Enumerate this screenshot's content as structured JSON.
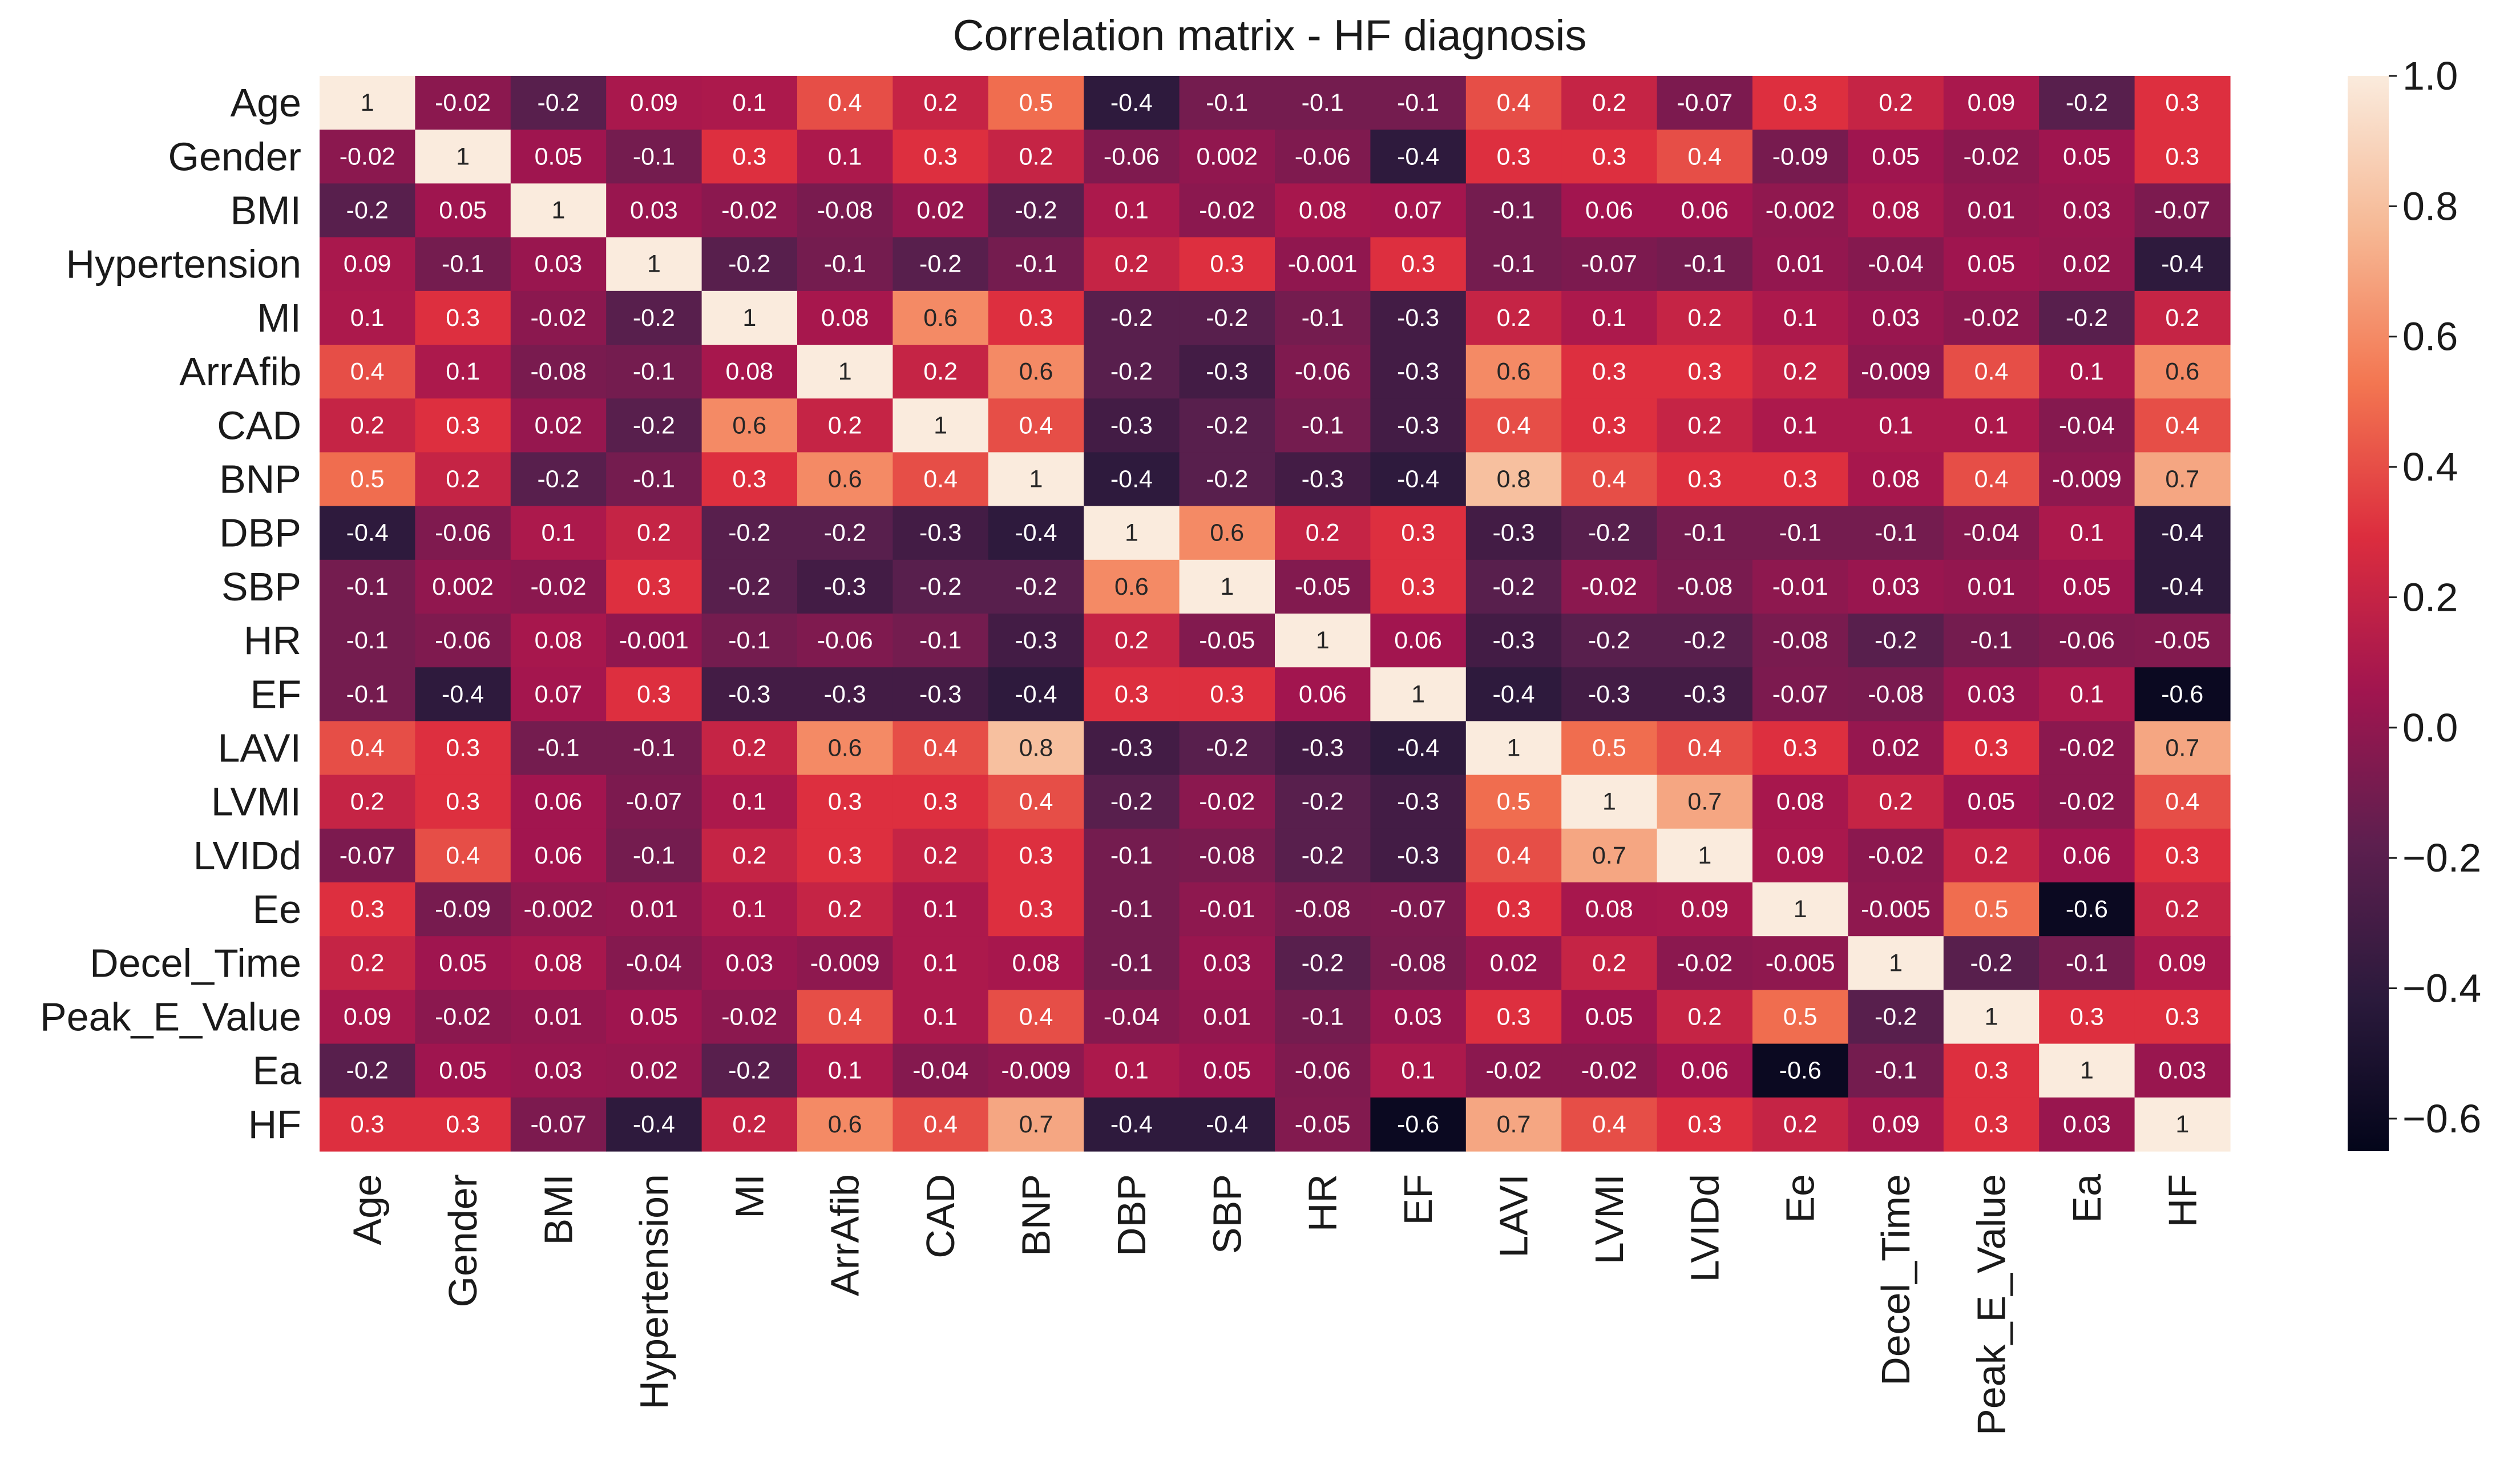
{
  "chart_data": {
    "type": "heatmap",
    "title": "Correlation matrix - HF diagnosis",
    "xlabel": "",
    "ylabel": "",
    "variables": [
      "Age",
      "Gender",
      "BMI",
      "Hypertension",
      "MI",
      "ArrAfib",
      "CAD",
      "BNP",
      "DBP",
      "SBP",
      "HR",
      "EF",
      "LAVI",
      "LVMI",
      "LVIDd",
      "Ee",
      "Decel_Time",
      "Peak_E_Value",
      "Ea",
      "HF"
    ],
    "cell_labels": [
      [
        "1",
        "-0.02",
        "-0.2",
        "0.09",
        "0.1",
        "0.4",
        "0.2",
        "0.5",
        "-0.4",
        "-0.1",
        "-0.1",
        "-0.1",
        "0.4",
        "0.2",
        "-0.07",
        "0.3",
        "0.2",
        "0.09",
        "-0.2",
        "0.3"
      ],
      [
        "-0.02",
        "1",
        "0.05",
        "-0.1",
        "0.3",
        "0.1",
        "0.3",
        "0.2",
        "-0.06",
        "0.002",
        "-0.06",
        "-0.4",
        "0.3",
        "0.3",
        "0.4",
        "-0.09",
        "0.05",
        "-0.02",
        "0.05",
        "0.3"
      ],
      [
        "-0.2",
        "0.05",
        "1",
        "0.03",
        "-0.02",
        "-0.08",
        "0.02",
        "-0.2",
        "0.1",
        "-0.02",
        "0.08",
        "0.07",
        "-0.1",
        "0.06",
        "0.06",
        "-0.002",
        "0.08",
        "0.01",
        "0.03",
        "-0.07"
      ],
      [
        "0.09",
        "-0.1",
        "0.03",
        "1",
        "-0.2",
        "-0.1",
        "-0.2",
        "-0.1",
        "0.2",
        "0.3",
        "-0.001",
        "0.3",
        "-0.1",
        "-0.07",
        "-0.1",
        "0.01",
        "-0.04",
        "0.05",
        "0.02",
        "-0.4"
      ],
      [
        "0.1",
        "0.3",
        "-0.02",
        "-0.2",
        "1",
        "0.08",
        "0.6",
        "0.3",
        "-0.2",
        "-0.2",
        "-0.1",
        "-0.3",
        "0.2",
        "0.1",
        "0.2",
        "0.1",
        "0.03",
        "-0.02",
        "-0.2",
        "0.2"
      ],
      [
        "0.4",
        "0.1",
        "-0.08",
        "-0.1",
        "0.08",
        "1",
        "0.2",
        "0.6",
        "-0.2",
        "-0.3",
        "-0.06",
        "-0.3",
        "0.6",
        "0.3",
        "0.3",
        "0.2",
        "-0.009",
        "0.4",
        "0.1",
        "0.6"
      ],
      [
        "0.2",
        "0.3",
        "0.02",
        "-0.2",
        "0.6",
        "0.2",
        "1",
        "0.4",
        "-0.3",
        "-0.2",
        "-0.1",
        "-0.3",
        "0.4",
        "0.3",
        "0.2",
        "0.1",
        "0.1",
        "0.1",
        "-0.04",
        "0.4"
      ],
      [
        "0.5",
        "0.2",
        "-0.2",
        "-0.1",
        "0.3",
        "0.6",
        "0.4",
        "1",
        "-0.4",
        "-0.2",
        "-0.3",
        "-0.4",
        "0.8",
        "0.4",
        "0.3",
        "0.3",
        "0.08",
        "0.4",
        "-0.009",
        "0.7"
      ],
      [
        "-0.4",
        "-0.06",
        "0.1",
        "0.2",
        "-0.2",
        "-0.2",
        "-0.3",
        "-0.4",
        "1",
        "0.6",
        "0.2",
        "0.3",
        "-0.3",
        "-0.2",
        "-0.1",
        "-0.1",
        "-0.1",
        "-0.04",
        "0.1",
        "-0.4"
      ],
      [
        "-0.1",
        "0.002",
        "-0.02",
        "0.3",
        "-0.2",
        "-0.3",
        "-0.2",
        "-0.2",
        "0.6",
        "1",
        "-0.05",
        "0.3",
        "-0.2",
        "-0.02",
        "-0.08",
        "-0.01",
        "0.03",
        "0.01",
        "0.05",
        "-0.4"
      ],
      [
        "-0.1",
        "-0.06",
        "0.08",
        "-0.001",
        "-0.1",
        "-0.06",
        "-0.1",
        "-0.3",
        "0.2",
        "-0.05",
        "1",
        "0.06",
        "-0.3",
        "-0.2",
        "-0.2",
        "-0.08",
        "-0.2",
        "-0.1",
        "-0.06",
        "-0.05"
      ],
      [
        "-0.1",
        "-0.4",
        "0.07",
        "0.3",
        "-0.3",
        "-0.3",
        "-0.3",
        "-0.4",
        "0.3",
        "0.3",
        "0.06",
        "1",
        "-0.4",
        "-0.3",
        "-0.3",
        "-0.07",
        "-0.08",
        "0.03",
        "0.1",
        "-0.6"
      ],
      [
        "0.4",
        "0.3",
        "-0.1",
        "-0.1",
        "0.2",
        "0.6",
        "0.4",
        "0.8",
        "-0.3",
        "-0.2",
        "-0.3",
        "-0.4",
        "1",
        "0.5",
        "0.4",
        "0.3",
        "0.02",
        "0.3",
        "-0.02",
        "0.7"
      ],
      [
        "0.2",
        "0.3",
        "0.06",
        "-0.07",
        "0.1",
        "0.3",
        "0.3",
        "0.4",
        "-0.2",
        "-0.02",
        "-0.2",
        "-0.3",
        "0.5",
        "1",
        "0.7",
        "0.08",
        "0.2",
        "0.05",
        "-0.02",
        "0.4"
      ],
      [
        "-0.07",
        "0.4",
        "0.06",
        "-0.1",
        "0.2",
        "0.3",
        "0.2",
        "0.3",
        "-0.1",
        "-0.08",
        "-0.2",
        "-0.3",
        "0.4",
        "0.7",
        "1",
        "0.09",
        "-0.02",
        "0.2",
        "0.06",
        "0.3"
      ],
      [
        "0.3",
        "-0.09",
        "-0.002",
        "0.01",
        "0.1",
        "0.2",
        "0.1",
        "0.3",
        "-0.1",
        "-0.01",
        "-0.08",
        "-0.07",
        "0.3",
        "0.08",
        "0.09",
        "1",
        "-0.005",
        "0.5",
        "-0.6",
        "0.2"
      ],
      [
        "0.2",
        "0.05",
        "0.08",
        "-0.04",
        "0.03",
        "-0.009",
        "0.1",
        "0.08",
        "-0.1",
        "0.03",
        "-0.2",
        "-0.08",
        "0.02",
        "0.2",
        "-0.02",
        "-0.005",
        "1",
        "-0.2",
        "-0.1",
        "0.09"
      ],
      [
        "0.09",
        "-0.02",
        "0.01",
        "0.05",
        "-0.02",
        "0.4",
        "0.1",
        "0.4",
        "-0.04",
        "0.01",
        "-0.1",
        "0.03",
        "0.3",
        "0.05",
        "0.2",
        "0.5",
        "-0.2",
        "1",
        "0.3",
        "0.3"
      ],
      [
        "-0.2",
        "0.05",
        "0.03",
        "0.02",
        "-0.2",
        "0.1",
        "-0.04",
        "-0.009",
        "0.1",
        "0.05",
        "-0.06",
        "0.1",
        "-0.02",
        "-0.02",
        "0.06",
        "-0.6",
        "-0.1",
        "0.3",
        "1",
        "0.03"
      ],
      [
        "0.3",
        "0.3",
        "-0.07",
        "-0.4",
        "0.2",
        "0.6",
        "0.4",
        "0.7",
        "-0.4",
        "-0.4",
        "-0.05",
        "-0.6",
        "0.7",
        "0.4",
        "0.3",
        "0.2",
        "0.09",
        "0.3",
        "0.03",
        "1"
      ]
    ],
    "colorbar": {
      "vmin": -0.65,
      "vmax": 1.0,
      "ticks": [
        -0.6,
        -0.4,
        -0.2,
        0.0,
        0.2,
        0.4,
        0.6,
        0.8,
        1.0
      ],
      "tick_labels": [
        "−0.6",
        "−0.4",
        "−0.2",
        "0.0",
        "0.2",
        "0.4",
        "0.6",
        "0.8",
        "1.0"
      ],
      "colormap": "rocket",
      "colormap_stops": [
        "#03051a",
        "#2b1a3c",
        "#5d1f4f",
        "#a1154f",
        "#dc2d3e",
        "#f37651",
        "#f6b894",
        "#faebdd"
      ]
    }
  }
}
